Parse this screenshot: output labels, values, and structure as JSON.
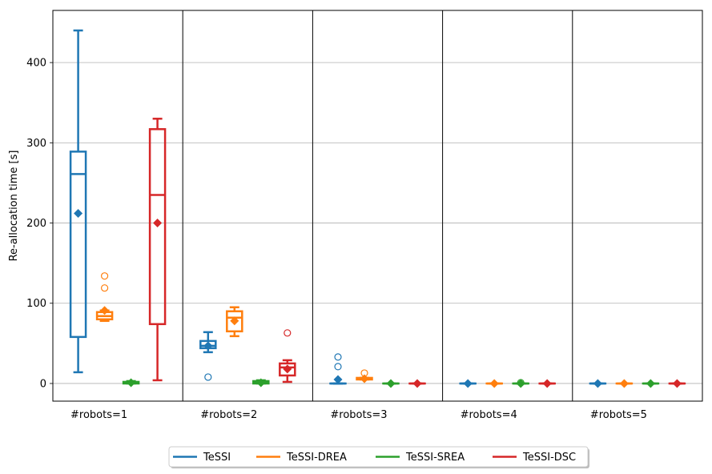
{
  "chart_data": {
    "type": "boxplot",
    "title": "",
    "xlabel": "",
    "ylabel": "Re-allocation time [s]",
    "ylim": [
      -22,
      465
    ],
    "yticks": [
      0,
      100,
      200,
      300,
      400
    ],
    "grid": "horizontal",
    "legend_position": "bottom-center",
    "groups": [
      "#robots=1",
      "#robots=2",
      "#robots=3",
      "#robots=4",
      "#robots=5"
    ],
    "series": [
      {
        "name": "TeSSI",
        "color": "#1f77b4",
        "boxes": [
          {
            "whislo": 14,
            "q1": 58,
            "med": 261,
            "q3": 289,
            "whishi": 440,
            "mean": 212,
            "fliers": []
          },
          {
            "whislo": 39,
            "q1": 44,
            "med": 47,
            "q3": 53,
            "whishi": 64,
            "mean": 47,
            "fliers": [
              8
            ]
          },
          {
            "whislo": 0,
            "q1": 0,
            "med": 0,
            "q3": 0,
            "whishi": 0,
            "mean": 5,
            "fliers": [
              21,
              33
            ]
          },
          {
            "whislo": 0,
            "q1": 0,
            "med": 0,
            "q3": 0,
            "whishi": 0,
            "mean": 0,
            "fliers": []
          },
          {
            "whislo": 0,
            "q1": 0,
            "med": 0,
            "q3": 0,
            "whishi": 0,
            "mean": 0,
            "fliers": []
          }
        ]
      },
      {
        "name": "TeSSI-DREA",
        "color": "#ff7f0e",
        "boxes": [
          {
            "whislo": 78,
            "q1": 80,
            "med": 84,
            "q3": 89,
            "whishi": 91,
            "mean": 91,
            "fliers": [
              119,
              134
            ]
          },
          {
            "whislo": 59,
            "q1": 65,
            "med": 82,
            "q3": 90,
            "whishi": 95,
            "mean": 78,
            "fliers": []
          },
          {
            "whislo": 5,
            "q1": 5,
            "med": 6,
            "q3": 7,
            "whishi": 7,
            "mean": 6,
            "fliers": [
              13
            ]
          },
          {
            "whislo": 0,
            "q1": 0,
            "med": 0,
            "q3": 0,
            "whishi": 0,
            "mean": 0,
            "fliers": []
          },
          {
            "whislo": 0,
            "q1": 0,
            "med": 0,
            "q3": 0,
            "whishi": 0,
            "mean": 0,
            "fliers": []
          }
        ]
      },
      {
        "name": "TeSSI-SREA",
        "color": "#2ca02c",
        "boxes": [
          {
            "whislo": 0,
            "q1": 0,
            "med": 1,
            "q3": 2,
            "whishi": 3,
            "mean": 1,
            "fliers": []
          },
          {
            "whislo": 0,
            "q1": 0,
            "med": 2,
            "q3": 3,
            "whishi": 4,
            "mean": 1,
            "fliers": []
          },
          {
            "whislo": 0,
            "q1": 0,
            "med": 0,
            "q3": 0,
            "whishi": 0,
            "mean": 0,
            "fliers": []
          },
          {
            "whislo": 0,
            "q1": 0,
            "med": 0,
            "q3": 0,
            "whishi": 0,
            "mean": 0,
            "fliers": [
              1
            ]
          },
          {
            "whislo": 0,
            "q1": 0,
            "med": 0,
            "q3": 0,
            "whishi": 0,
            "mean": 0,
            "fliers": []
          }
        ]
      },
      {
        "name": "TeSSI-DSC",
        "color": "#d62728",
        "boxes": [
          {
            "whislo": 4,
            "q1": 74,
            "med": 235,
            "q3": 317,
            "whishi": 330,
            "mean": 200,
            "fliers": []
          },
          {
            "whislo": 2,
            "q1": 10,
            "med": 20,
            "q3": 25,
            "whishi": 29,
            "mean": 18,
            "fliers": [
              63
            ]
          },
          {
            "whislo": 0,
            "q1": 0,
            "med": 0,
            "q3": 0,
            "whishi": 0,
            "mean": 0,
            "fliers": []
          },
          {
            "whislo": 0,
            "q1": 0,
            "med": 0,
            "q3": 0,
            "whishi": 0,
            "mean": 0,
            "fliers": []
          },
          {
            "whislo": 0,
            "q1": 0,
            "med": 0,
            "q3": 0,
            "whishi": 0,
            "mean": 0,
            "fliers": []
          }
        ]
      }
    ]
  }
}
